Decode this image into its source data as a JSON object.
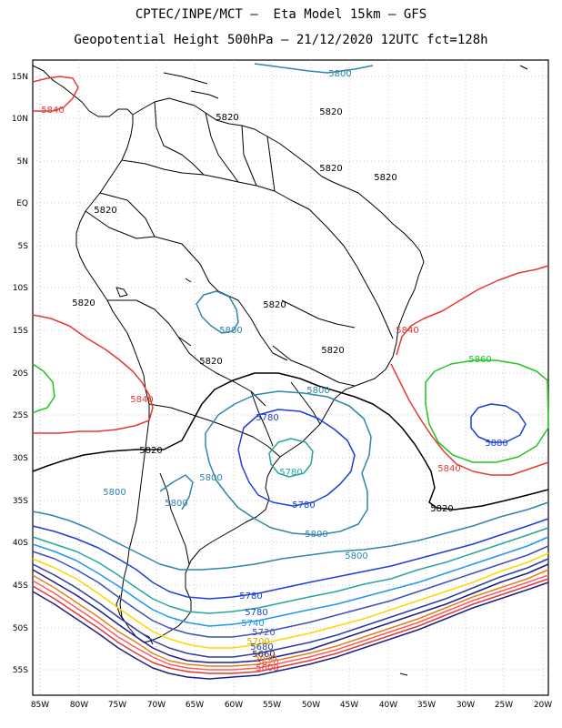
{
  "title_line1": "CPTEC/INPE/MCT –  Eta Model 15km – GFS",
  "title_line2": "Geopotential Height 500hPa – 21/12/2020 12UTC fct=128h",
  "lat_ticks": [
    "15N",
    "10N",
    "5N",
    "EQ",
    "5S",
    "10S",
    "15S",
    "20S",
    "25S",
    "30S",
    "35S",
    "40S",
    "45S",
    "50S",
    "55S"
  ],
  "lon_ticks": [
    "85W",
    "80W",
    "75W",
    "70W",
    "65W",
    "60W",
    "55W",
    "50W",
    "45W",
    "40W",
    "35W",
    "30W",
    "25W",
    "20W"
  ],
  "contour_colors": {
    "5580": "#1a237e",
    "5600": "#e53935",
    "5620": "#ff5c5c",
    "5640": "#e08020",
    "5660": "#1a237e",
    "5680": "#303f9f",
    "5700": "#ffd700",
    "5720": "#3f51b5",
    "5740": "#2196f3",
    "5760": "#26a69a",
    "5780": "#1e3fd6",
    "5800": "#2e86ab",
    "5820": "#000000",
    "5840": "#e53935",
    "5860": "#22c522",
    "5880": "#1e3fd6"
  },
  "contour_labels": [
    {
      "text": "5800",
      "color_key": "5800"
    },
    {
      "text": "5840",
      "color_key": "5840"
    },
    {
      "text": "5820",
      "color_key": "5820"
    },
    {
      "text": "5820",
      "color_key": "5820"
    },
    {
      "text": "5820",
      "color_key": "5820"
    },
    {
      "text": "5820",
      "color_key": "5820"
    },
    {
      "text": "5820",
      "color_key": "5820"
    },
    {
      "text": "5820",
      "color_key": "5820"
    },
    {
      "text": "5800",
      "color_key": "5800"
    },
    {
      "text": "5820",
      "color_key": "5820"
    },
    {
      "text": "5820",
      "color_key": "5820"
    },
    {
      "text": "5820",
      "color_key": "5820"
    },
    {
      "text": "5840",
      "color_key": "5840"
    },
    {
      "text": "5860",
      "color_key": "5860"
    },
    {
      "text": "5800",
      "color_key": "5800"
    },
    {
      "text": "5840",
      "color_key": "5840"
    },
    {
      "text": "5780",
      "color_key": "5780"
    },
    {
      "text": "5880",
      "color_key": "5880"
    },
    {
      "text": "5820",
      "color_key": "5820"
    },
    {
      "text": "5780",
      "color_key": "5780"
    },
    {
      "text": "5800",
      "color_key": "5800"
    },
    {
      "text": "5840",
      "color_key": "5840"
    },
    {
      "text": "5800",
      "color_key": "5800"
    },
    {
      "text": "5800",
      "color_key": "5800"
    },
    {
      "text": "5780",
      "color_key": "5780"
    },
    {
      "text": "5820",
      "color_key": "5820"
    },
    {
      "text": "5800",
      "color_key": "5800"
    },
    {
      "text": "5800",
      "color_key": "5800"
    },
    {
      "text": "5780",
      "color_key": "5780"
    },
    {
      "text": "5780",
      "color_key": "5780"
    },
    {
      "text": "5740",
      "color_key": "5740"
    },
    {
      "text": "5720",
      "color_key": "5720"
    },
    {
      "text": "5700",
      "color_key": "5700"
    },
    {
      "text": "5680",
      "color_key": "5680"
    },
    {
      "text": "5660",
      "color_key": "5660"
    },
    {
      "text": "5640",
      "color_key": "5640"
    },
    {
      "text": "5620",
      "color_key": "5620"
    },
    {
      "text": "5600",
      "color_key": "5600"
    }
  ]
}
